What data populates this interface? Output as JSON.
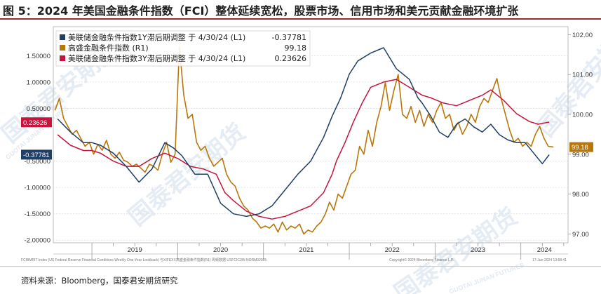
{
  "header": {
    "title": "图 5：2024 年美国金融条件指数（FCI）整体延续宽松，股票市场、信用市场和美元贡献金融环境扩张"
  },
  "source": "资料来源：Bloomberg，国泰君安期货研究",
  "watermark": {
    "logo_text": "国泰君安期货",
    "logo_sub": "GUOTAI JUNAN FUTURES"
  },
  "chart_footer": {
    "left": "FCIBMRIT Index (US Federal Reserve Financial Conditions Weekly One-Year Lookback) 与XIFEXX高盛金融条件指数(R1)  周频数据  USFCIC3W-NORM02025",
    "right": "Copyright© 2024 Bloomberg Finance L.P.",
    "timestamp": "17-Jun-2024 13:58:41"
  },
  "chart_data": {
    "type": "line",
    "x_years": [
      "2019",
      "2020",
      "2021",
      "2022",
      "2023",
      "2024"
    ],
    "x_range": [
      2018.55,
      2024.55
    ],
    "left_axis": {
      "ylim": [
        -2.05,
        2.05
      ],
      "ticks": [
        "1.50000",
        "1.00000",
        "0.50000",
        "-0.50000",
        "-1.00000",
        "-1.50000",
        "-2.00000"
      ],
      "tick_values": [
        1.5,
        1.0,
        0.5,
        -0.5,
        -1.0,
        -1.5,
        -2.0
      ]
    },
    "right_axis": {
      "ylim": [
        96.78,
        102.2
      ],
      "ticks": [
        "102.00",
        "101.00",
        "100.00",
        "99.00",
        "98.00",
        "97.00"
      ],
      "tick_values": [
        102,
        101,
        100,
        99,
        98,
        97
      ]
    },
    "legend": {
      "placement": "top-left",
      "entries": [
        {
          "series": "fci_1y",
          "label": "美联储金融条件指数1Y滞后期调整  于 4/30/24 (L1)",
          "value": "-0.37781"
        },
        {
          "series": "gs_fci",
          "label": "高盛金融条件指数 (R1)",
          "value": "99.18"
        },
        {
          "series": "fci_3y",
          "label": "美联储金融条件指数3Y滞后期调整  于 4/30/24 (L1)",
          "value": "0.23626"
        }
      ]
    },
    "end_labels": {
      "fci_1y": "-0.37781",
      "fci_3y": "0.23626",
      "gs_fci": "99.18"
    },
    "series": [
      {
        "id": "fci_1y",
        "name": "美联储金融条件指数1Y滞后期调整",
        "axis": "left",
        "color": "#1f3f66",
        "x": [
          2018.6,
          2018.75,
          2018.9,
          2019.0,
          2019.1,
          2019.25,
          2019.4,
          2019.55,
          2019.7,
          2019.85,
          2019.95,
          2020.05,
          2020.2,
          2020.35,
          2020.5,
          2020.65,
          2020.8,
          2020.95,
          2021.1,
          2021.25,
          2021.4,
          2021.55,
          2021.7,
          2021.8,
          2021.9,
          2022.0,
          2022.1,
          2022.25,
          2022.4,
          2022.55,
          2022.7,
          2022.8,
          2022.85,
          2022.95,
          2023.05,
          2023.15,
          2023.25,
          2023.35,
          2023.45,
          2023.55,
          2023.65,
          2023.75,
          2023.85,
          2023.95,
          2024.05,
          2024.15,
          2024.25,
          2024.33
        ],
        "values": [
          0.3,
          0.05,
          -0.15,
          -0.15,
          -0.2,
          -0.35,
          -0.6,
          -0.9,
          -0.65,
          -0.15,
          -0.25,
          -0.4,
          -0.75,
          -0.75,
          -1.3,
          -1.5,
          -1.55,
          -1.5,
          -1.35,
          -1.05,
          -0.75,
          -0.5,
          -0.05,
          0.35,
          0.7,
          1.15,
          1.4,
          1.55,
          1.65,
          1.25,
          1.05,
          0.7,
          0.6,
          0.35,
          0.05,
          -0.05,
          0.2,
          0.3,
          0.15,
          0.05,
          0.2,
          0.0,
          -0.1,
          -0.15,
          -0.15,
          -0.35,
          -0.55,
          -0.38
        ]
      },
      {
        "id": "fci_3y",
        "name": "美联储金融条件指数3Y滞后期调整",
        "axis": "left",
        "color": "#c7143c",
        "x": [
          2018.6,
          2018.75,
          2018.9,
          2019.0,
          2019.1,
          2019.25,
          2019.4,
          2019.55,
          2019.7,
          2019.85,
          2020.0,
          2020.15,
          2020.3,
          2020.45,
          2020.55,
          2020.65,
          2020.8,
          2020.95,
          2021.1,
          2021.25,
          2021.4,
          2021.55,
          2021.7,
          2021.8,
          2021.85,
          2021.95,
          2022.05,
          2022.15,
          2022.25,
          2022.4,
          2022.55,
          2022.7,
          2022.85,
          2022.95,
          2023.1,
          2023.25,
          2023.4,
          2023.55,
          2023.65,
          2023.8,
          2023.95,
          2024.1,
          2024.2,
          2024.33
        ],
        "values": [
          0.0,
          -0.2,
          -0.3,
          -0.3,
          -0.35,
          -0.5,
          -0.6,
          -0.6,
          -0.45,
          -0.35,
          -0.45,
          -0.6,
          -0.65,
          -0.75,
          -1.1,
          -1.25,
          -1.45,
          -1.55,
          -1.6,
          -1.55,
          -1.45,
          -1.35,
          -1.1,
          -0.75,
          -0.5,
          -0.15,
          0.25,
          0.6,
          0.9,
          1.0,
          1.05,
          0.9,
          0.75,
          0.7,
          0.6,
          0.55,
          0.65,
          0.75,
          0.85,
          0.65,
          0.4,
          0.25,
          0.2,
          0.24
        ]
      },
      {
        "id": "gs_fci",
        "name": "高盛金融条件指数",
        "axis": "right",
        "color": "#b8770a",
        "x": [
          2018.57,
          2018.62,
          2018.67,
          2018.72,
          2018.77,
          2018.82,
          2018.87,
          2018.92,
          2018.97,
          2019.02,
          2019.07,
          2019.12,
          2019.17,
          2019.22,
          2019.27,
          2019.32,
          2019.37,
          2019.42,
          2019.47,
          2019.52,
          2019.57,
          2019.62,
          2019.67,
          2019.72,
          2019.77,
          2019.82,
          2019.87,
          2019.92,
          2019.97,
          2020.02,
          2020.07,
          2020.12,
          2020.17,
          2020.22,
          2020.27,
          2020.32,
          2020.37,
          2020.42,
          2020.47,
          2020.52,
          2020.57,
          2020.62,
          2020.67,
          2020.72,
          2020.77,
          2020.82,
          2020.87,
          2020.92,
          2020.97,
          2021.02,
          2021.07,
          2021.12,
          2021.17,
          2021.22,
          2021.27,
          2021.32,
          2021.37,
          2021.42,
          2021.47,
          2021.52,
          2021.57,
          2021.62,
          2021.67,
          2021.72,
          2021.77,
          2021.82,
          2021.87,
          2021.92,
          2021.97,
          2022.02,
          2022.07,
          2022.12,
          2022.17,
          2022.22,
          2022.27,
          2022.32,
          2022.37,
          2022.42,
          2022.47,
          2022.52,
          2022.57,
          2022.62,
          2022.67,
          2022.72,
          2022.77,
          2022.82,
          2022.87,
          2022.92,
          2022.97,
          2023.02,
          2023.07,
          2023.12,
          2023.17,
          2023.22,
          2023.27,
          2023.32,
          2023.37,
          2023.42,
          2023.47,
          2023.52,
          2023.57,
          2023.62,
          2023.67,
          2023.72,
          2023.77,
          2023.82,
          2023.87,
          2023.92,
          2023.97,
          2024.02,
          2024.07,
          2024.12,
          2024.17,
          2024.22,
          2024.27,
          2024.32,
          2024.38
        ],
        "values": [
          100.1,
          100.4,
          99.9,
          99.7,
          99.5,
          99.6,
          99.4,
          99.2,
          99.3,
          99.0,
          99.25,
          99.1,
          99.35,
          99.0,
          98.9,
          99.05,
          98.85,
          98.8,
          98.7,
          98.75,
          98.65,
          98.55,
          98.75,
          98.7,
          98.6,
          99.0,
          99.3,
          98.8,
          99.0,
          101.7,
          100.5,
          99.9,
          100.0,
          99.3,
          99.1,
          99.2,
          98.9,
          98.7,
          98.8,
          98.9,
          98.5,
          98.3,
          98.2,
          97.9,
          97.7,
          97.6,
          97.4,
          97.3,
          97.15,
          97.2,
          97.15,
          97.25,
          97.05,
          97.3,
          97.1,
          97.2,
          97.15,
          97.25,
          97.0,
          97.1,
          97.05,
          97.2,
          97.3,
          97.5,
          97.8,
          97.6,
          98.0,
          97.9,
          98.2,
          98.5,
          98.6,
          99.2,
          99.0,
          99.6,
          99.2,
          99.8,
          100.2,
          100.8,
          100.1,
          100.6,
          101.0,
          100.0,
          99.9,
          100.2,
          99.8,
          100.1,
          99.7,
          100.0,
          99.8,
          100.1,
          100.3,
          99.9,
          100.0,
          99.6,
          99.8,
          99.5,
          99.7,
          100.0,
          99.8,
          100.2,
          100.4,
          100.3,
          100.6,
          100.9,
          100.4,
          100.0,
          99.6,
          99.3,
          99.4,
          99.2,
          99.3,
          99.2,
          99.5,
          99.7,
          99.4,
          99.2,
          99.18
        ]
      }
    ]
  }
}
